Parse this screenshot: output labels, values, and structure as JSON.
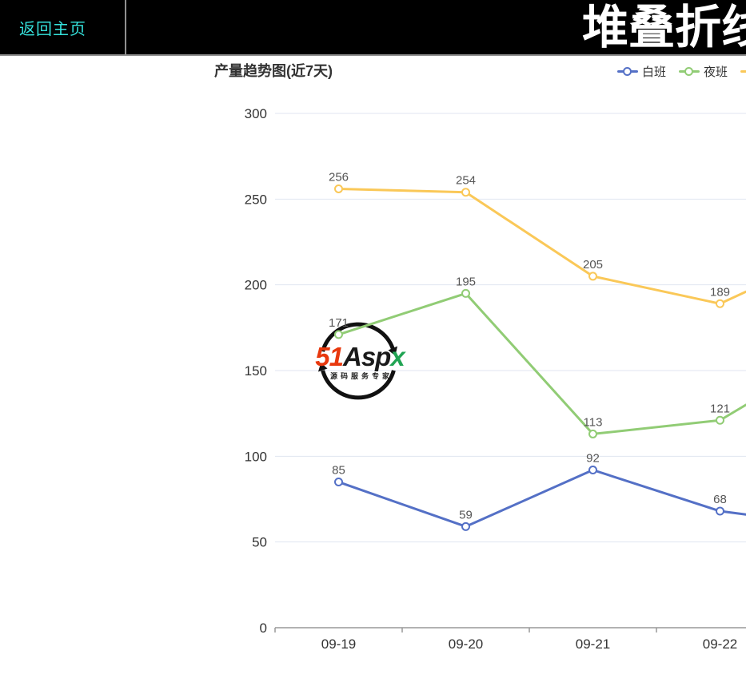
{
  "header": {
    "back_button_label": "返回主页",
    "page_title": "堆叠折线",
    "page_title_note": "clipped by right edge of screen",
    "colors": {
      "background": "#000000",
      "back_button_text": "#35e3dd",
      "title_text": "#ffffff"
    }
  },
  "chart": {
    "title": "产量趋势图(近7天)",
    "legend": {
      "position": "top-right",
      "items": [
        {
          "label": "白班",
          "color": "#5470c6"
        },
        {
          "label": "夜班",
          "color": "#91cc75"
        },
        {
          "label": "",
          "color": "#fac858",
          "clipped_at_right_edge": true
        }
      ]
    }
  },
  "chart_data": {
    "type": "line",
    "title": "产量趋势图(近7天)",
    "x": [
      "09-19",
      "09-20",
      "09-21",
      "09-22"
    ],
    "x_note": "chart is clipped at the right edge; more dates continue off-screen",
    "series": [
      {
        "name": "白班",
        "color": "#5470c6",
        "values": [
          85,
          59,
          92,
          68
        ],
        "value_at_right_clip": 66
      },
      {
        "name": "夜班",
        "color": "#91cc75",
        "values": [
          171,
          195,
          113,
          121
        ],
        "value_at_right_clip": 130
      },
      {
        "name": "",
        "color": "#fac858",
        "values": [
          256,
          254,
          205,
          189
        ],
        "value_at_right_clip": 196
      }
    ],
    "ylim": [
      0,
      300
    ],
    "yticks": [
      0,
      50,
      100,
      150,
      200,
      250,
      300
    ],
    "grid": true,
    "data_labels": true,
    "marker": "hollow-circle",
    "legend_position": "top-right",
    "grid_color": "#e0e6f1",
    "axis_line_color": "#999999",
    "axis_label_color": "#333333",
    "data_label_color": "#555555"
  },
  "watermark": {
    "logo_prefix": "51",
    "logo_mid": "Asp",
    "logo_suffix": "x",
    "caption": "源码服务专家",
    "colors": {
      "prefix": "#e8380d",
      "mid": "#1a1a1a",
      "suffix": "#21a453",
      "ring": "#111111"
    }
  }
}
